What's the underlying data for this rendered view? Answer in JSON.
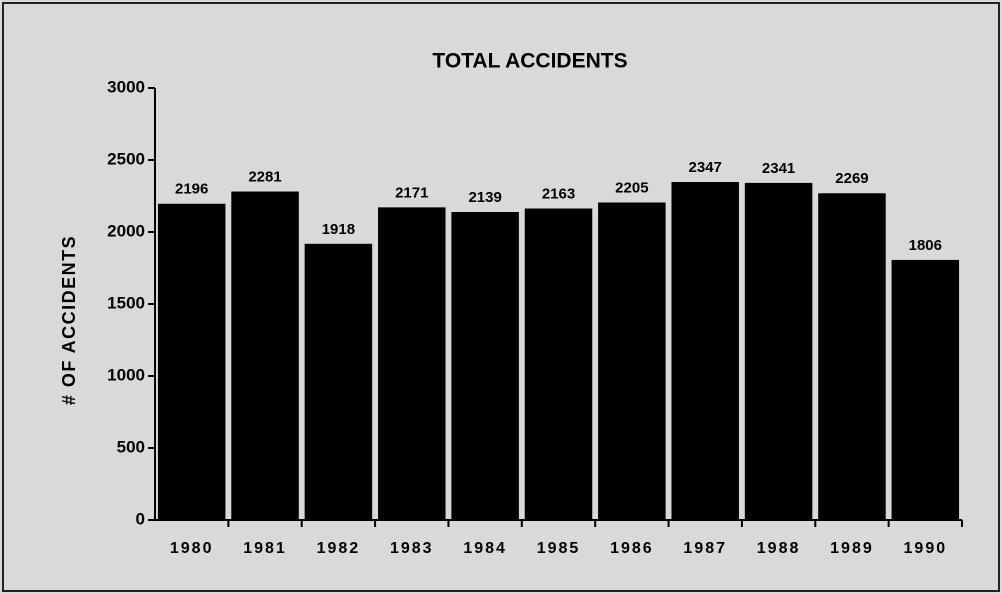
{
  "chart_data": {
    "type": "bar",
    "title": "TOTAL ACCIDENTS",
    "y_label": "# OF ACCIDENTS",
    "categories": [
      "1980",
      "1981",
      "1982",
      "1983",
      "1984",
      "1985",
      "1986",
      "1987",
      "1988",
      "1989",
      "1990"
    ],
    "values": [
      2196,
      2281,
      1918,
      2171,
      2139,
      2163,
      2205,
      2347,
      2341,
      2269,
      1806
    ],
    "color": "#000000",
    "ylim": [
      0,
      3000
    ],
    "yticks": [
      0,
      500,
      1000,
      1500,
      2000,
      2500,
      3000
    ],
    "grid": false
  }
}
